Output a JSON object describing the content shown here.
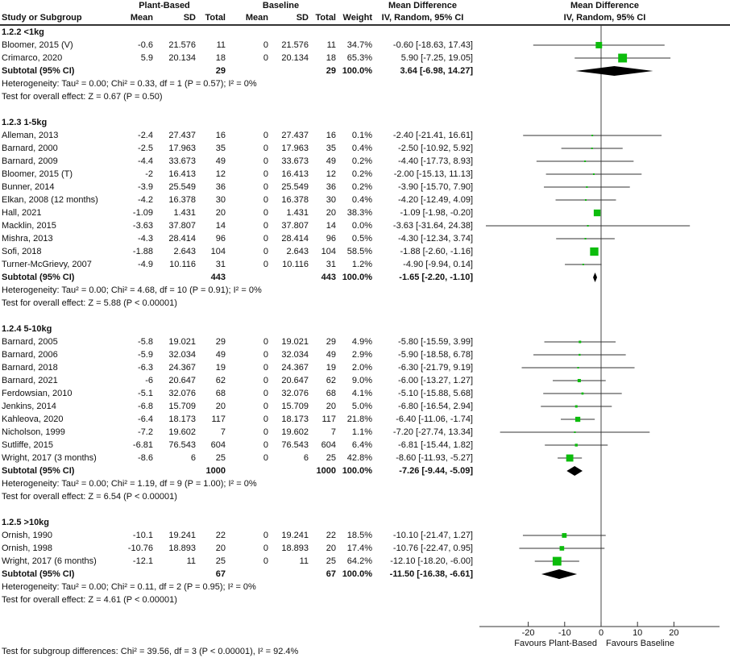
{
  "header": {
    "group1": "Plant-Based",
    "group2": "Baseline",
    "col_study": "Study or Subgroup",
    "col_mean": "Mean",
    "col_sd": "SD",
    "col_total": "Total",
    "col_weight": "Weight",
    "md_line1": "Mean Difference",
    "md_line2": "IV, Random, 95% CI"
  },
  "chart_data": {
    "type": "scatter",
    "subtype": "forest-plot",
    "effect_measure": "Mean Difference IV, Random, 95% CI",
    "axis_ticks": [
      -20,
      -10,
      0,
      10,
      20
    ],
    "xlim": [
      -33.4,
      32.5
    ],
    "favours_left": "Favours Plant-Based",
    "favours_right": "Favours Baseline",
    "square_color": "#0CBC0C",
    "diamond_color": "#000000",
    "line_color": "#333333",
    "footer": "Test for subgroup differences: Chi² = 39.56, df = 3 (P < 0.00001), I² = 92.4%",
    "subtotal_label": "Subtotal (95% CI)",
    "subgroups": [
      {
        "label": "1.2.2 <1kg",
        "studies": [
          {
            "name": "Bloomer, 2015 (V)",
            "mean": "-0.6",
            "sd": "21.576",
            "total": "11",
            "b_mean": "0",
            "b_sd": "21.576",
            "b_total": "11",
            "weight": "34.7%",
            "w": 34.7,
            "md": "-0.60 [-18.63, 17.43]",
            "est": -0.6,
            "lo": -18.63,
            "hi": 17.43
          },
          {
            "name": "Crimarco, 2020",
            "mean": "5.9",
            "sd": "20.134",
            "total": "18",
            "b_mean": "0",
            "b_sd": "20.134",
            "b_total": "18",
            "weight": "65.3%",
            "w": 65.3,
            "md": "5.90 [-7.25, 19.05]",
            "est": 5.9,
            "lo": -7.25,
            "hi": 19.05
          }
        ],
        "subtotal": {
          "total": "29",
          "b_total": "29",
          "weight": "100.0%",
          "md": "3.64 [-6.98, 14.27]",
          "est": 3.64,
          "lo": -6.98,
          "hi": 14.27
        },
        "heterogeneity": "Heterogeneity: Tau² = 0.00; Chi² = 0.33, df = 1 (P = 0.57); I² = 0%",
        "overall": "Test for overall effect: Z = 0.67 (P = 0.50)"
      },
      {
        "label": "1.2.3 1-5kg",
        "studies": [
          {
            "name": "Alleman, 2013",
            "mean": "-2.4",
            "sd": "27.437",
            "total": "16",
            "b_mean": "0",
            "b_sd": "27.437",
            "b_total": "16",
            "weight": "0.1%",
            "w": 0.1,
            "md": "-2.40 [-21.41, 16.61]",
            "est": -2.4,
            "lo": -21.41,
            "hi": 16.61
          },
          {
            "name": "Barnard, 2000",
            "mean": "-2.5",
            "sd": "17.963",
            "total": "35",
            "b_mean": "0",
            "b_sd": "17.963",
            "b_total": "35",
            "weight": "0.4%",
            "w": 0.4,
            "md": "-2.50 [-10.92, 5.92]",
            "est": -2.5,
            "lo": -10.92,
            "hi": 5.92
          },
          {
            "name": "Barnard, 2009",
            "mean": "-4.4",
            "sd": "33.673",
            "total": "49",
            "b_mean": "0",
            "b_sd": "33.673",
            "b_total": "49",
            "weight": "0.2%",
            "w": 0.2,
            "md": "-4.40 [-17.73, 8.93]",
            "est": -4.4,
            "lo": -17.73,
            "hi": 8.93
          },
          {
            "name": "Bloomer, 2015 (T)",
            "mean": "-2",
            "sd": "16.413",
            "total": "12",
            "b_mean": "0",
            "b_sd": "16.413",
            "b_total": "12",
            "weight": "0.2%",
            "w": 0.2,
            "md": "-2.00 [-15.13, 11.13]",
            "est": -2,
            "lo": -15.13,
            "hi": 11.13
          },
          {
            "name": "Bunner, 2014",
            "mean": "-3.9",
            "sd": "25.549",
            "total": "36",
            "b_mean": "0",
            "b_sd": "25.549",
            "b_total": "36",
            "weight": "0.2%",
            "w": 0.2,
            "md": "-3.90 [-15.70, 7.90]",
            "est": -3.9,
            "lo": -15.7,
            "hi": 7.9
          },
          {
            "name": "Elkan, 2008 (12 months)",
            "mean": "-4.2",
            "sd": "16.378",
            "total": "30",
            "b_mean": "0",
            "b_sd": "16.378",
            "b_total": "30",
            "weight": "0.4%",
            "w": 0.4,
            "md": "-4.20 [-12.49, 4.09]",
            "est": -4.2,
            "lo": -12.49,
            "hi": 4.09
          },
          {
            "name": "Hall, 2021",
            "mean": "-1.09",
            "sd": "1.431",
            "total": "20",
            "b_mean": "0",
            "b_sd": "1.431",
            "b_total": "20",
            "weight": "38.3%",
            "w": 38.3,
            "md": "-1.09 [-1.98, -0.20]",
            "est": -1.09,
            "lo": -1.98,
            "hi": -0.2
          },
          {
            "name": "Macklin, 2015",
            "mean": "-3.63",
            "sd": "37.807",
            "total": "14",
            "b_mean": "0",
            "b_sd": "37.807",
            "b_total": "14",
            "weight": "0.0%",
            "w": 0.05,
            "md": "-3.63 [-31.64, 24.38]",
            "est": -3.63,
            "lo": -31.64,
            "hi": 24.38
          },
          {
            "name": "Mishra, 2013",
            "mean": "-4.3",
            "sd": "28.414",
            "total": "96",
            "b_mean": "0",
            "b_sd": "28.414",
            "b_total": "96",
            "weight": "0.5%",
            "w": 0.5,
            "md": "-4.30 [-12.34, 3.74]",
            "est": -4.3,
            "lo": -12.34,
            "hi": 3.74
          },
          {
            "name": "Sofi, 2018",
            "mean": "-1.88",
            "sd": "2.643",
            "total": "104",
            "b_mean": "0",
            "b_sd": "2.643",
            "b_total": "104",
            "weight": "58.5%",
            "w": 58.5,
            "md": "-1.88 [-2.60, -1.16]",
            "est": -1.88,
            "lo": -2.6,
            "hi": -1.16
          },
          {
            "name": "Turner-McGrievy, 2007",
            "mean": "-4.9",
            "sd": "10.116",
            "total": "31",
            "b_mean": "0",
            "b_sd": "10.116",
            "b_total": "31",
            "weight": "1.2%",
            "w": 1.2,
            "md": "-4.90 [-9.94, 0.14]",
            "est": -4.9,
            "lo": -9.94,
            "hi": 0.14
          }
        ],
        "subtotal": {
          "total": "443",
          "b_total": "443",
          "weight": "100.0%",
          "md": "-1.65 [-2.20, -1.10]",
          "est": -1.65,
          "lo": -2.2,
          "hi": -1.1
        },
        "heterogeneity": "Heterogeneity: Tau² = 0.00; Chi² = 4.68, df = 10 (P = 0.91); I² = 0%",
        "overall": "Test for overall effect: Z = 5.88 (P < 0.00001)"
      },
      {
        "label": "1.2.4 5-10kg",
        "studies": [
          {
            "name": "Barnard, 2005",
            "mean": "-5.8",
            "sd": "19.021",
            "total": "29",
            "b_mean": "0",
            "b_sd": "19.021",
            "b_total": "29",
            "weight": "4.9%",
            "w": 4.9,
            "md": "-5.80 [-15.59, 3.99]",
            "est": -5.8,
            "lo": -15.59,
            "hi": 3.99
          },
          {
            "name": "Barnard, 2006",
            "mean": "-5.9",
            "sd": "32.034",
            "total": "49",
            "b_mean": "0",
            "b_sd": "32.034",
            "b_total": "49",
            "weight": "2.9%",
            "w": 2.9,
            "md": "-5.90 [-18.58, 6.78]",
            "est": -5.9,
            "lo": -18.58,
            "hi": 6.78
          },
          {
            "name": "Barnard, 2018",
            "mean": "-6.3",
            "sd": "24.367",
            "total": "19",
            "b_mean": "0",
            "b_sd": "24.367",
            "b_total": "19",
            "weight": "2.0%",
            "w": 2.0,
            "md": "-6.30 [-21.79, 9.19]",
            "est": -6.3,
            "lo": -21.79,
            "hi": 9.19
          },
          {
            "name": "Barnard, 2021",
            "mean": "-6",
            "sd": "20.647",
            "total": "62",
            "b_mean": "0",
            "b_sd": "20.647",
            "b_total": "62",
            "weight": "9.0%",
            "w": 9.0,
            "md": "-6.00 [-13.27, 1.27]",
            "est": -6,
            "lo": -13.27,
            "hi": 1.27
          },
          {
            "name": "Ferdowsian, 2010",
            "mean": "-5.1",
            "sd": "32.076",
            "total": "68",
            "b_mean": "0",
            "b_sd": "32.076",
            "b_total": "68",
            "weight": "4.1%",
            "w": 4.1,
            "md": "-5.10 [-15.88, 5.68]",
            "est": -5.1,
            "lo": -15.88,
            "hi": 5.68
          },
          {
            "name": "Jenkins, 2014",
            "mean": "-6.8",
            "sd": "15.709",
            "total": "20",
            "b_mean": "0",
            "b_sd": "15.709",
            "b_total": "20",
            "weight": "5.0%",
            "w": 5.0,
            "md": "-6.80 [-16.54, 2.94]",
            "est": -6.8,
            "lo": -16.54,
            "hi": 2.94
          },
          {
            "name": "Kahleova, 2020",
            "mean": "-6.4",
            "sd": "18.173",
            "total": "117",
            "b_mean": "0",
            "b_sd": "18.173",
            "b_total": "117",
            "weight": "21.8%",
            "w": 21.8,
            "md": "-6.40 [-11.06, -1.74]",
            "est": -6.4,
            "lo": -11.06,
            "hi": -1.74
          },
          {
            "name": "Nicholson, 1999",
            "mean": "-7.2",
            "sd": "19.602",
            "total": "7",
            "b_mean": "0",
            "b_sd": "19.602",
            "b_total": "7",
            "weight": "1.1%",
            "w": 1.1,
            "md": "-7.20 [-27.74, 13.34]",
            "est": -7.2,
            "lo": -27.74,
            "hi": 13.34
          },
          {
            "name": "Sutliffe, 2015",
            "mean": "-6.81",
            "sd": "76.543",
            "total": "604",
            "b_mean": "0",
            "b_sd": "76.543",
            "b_total": "604",
            "weight": "6.4%",
            "w": 6.4,
            "md": "-6.81 [-15.44, 1.82]",
            "est": -6.81,
            "lo": -15.44,
            "hi": 1.82
          },
          {
            "name": "Wright, 2017 (3 months)",
            "mean": "-8.6",
            "sd": "6",
            "total": "25",
            "b_mean": "0",
            "b_sd": "6",
            "b_total": "25",
            "weight": "42.8%",
            "w": 42.8,
            "md": "-8.60 [-11.93, -5.27]",
            "est": -8.6,
            "lo": -11.93,
            "hi": -5.27
          }
        ],
        "subtotal": {
          "total": "1000",
          "b_total": "1000",
          "weight": "100.0%",
          "md": "-7.26 [-9.44, -5.09]",
          "est": -7.26,
          "lo": -9.44,
          "hi": -5.09
        },
        "heterogeneity": "Heterogeneity: Tau² = 0.00; Chi² = 1.19, df = 9 (P = 1.00); I² = 0%",
        "overall": "Test for overall effect: Z = 6.54 (P < 0.00001)"
      },
      {
        "label": "1.2.5 >10kg",
        "studies": [
          {
            "name": "Ornish, 1990",
            "mean": "-10.1",
            "sd": "19.241",
            "total": "22",
            "b_mean": "0",
            "b_sd": "19.241",
            "b_total": "22",
            "weight": "18.5%",
            "w": 18.5,
            "md": "-10.10 [-21.47, 1.27]",
            "est": -10.1,
            "lo": -21.47,
            "hi": 1.27
          },
          {
            "name": "Ornish, 1998",
            "mean": "-10.76",
            "sd": "18.893",
            "total": "20",
            "b_mean": "0",
            "b_sd": "18.893",
            "b_total": "20",
            "weight": "17.4%",
            "w": 17.4,
            "md": "-10.76 [-22.47, 0.95]",
            "est": -10.76,
            "lo": -22.47,
            "hi": 0.95
          },
          {
            "name": "Wright, 2017 (6 months)",
            "mean": "-12.1",
            "sd": "11",
            "total": "25",
            "b_mean": "0",
            "b_sd": "11",
            "b_total": "25",
            "weight": "64.2%",
            "w": 64.2,
            "md": "-12.10 [-18.20, -6.00]",
            "est": -12.1,
            "lo": -18.2,
            "hi": -6.0
          }
        ],
        "subtotal": {
          "total": "67",
          "b_total": "67",
          "weight": "100.0%",
          "md": "-11.50 [-16.38, -6.61]",
          "est": -11.5,
          "lo": -16.38,
          "hi": -6.61
        },
        "heterogeneity": "Heterogeneity: Tau² = 0.00; Chi² = 0.11, df = 2 (P = 0.95); I² = 0%",
        "overall": "Test for overall effect: Z = 4.61 (P < 0.00001)"
      }
    ]
  }
}
